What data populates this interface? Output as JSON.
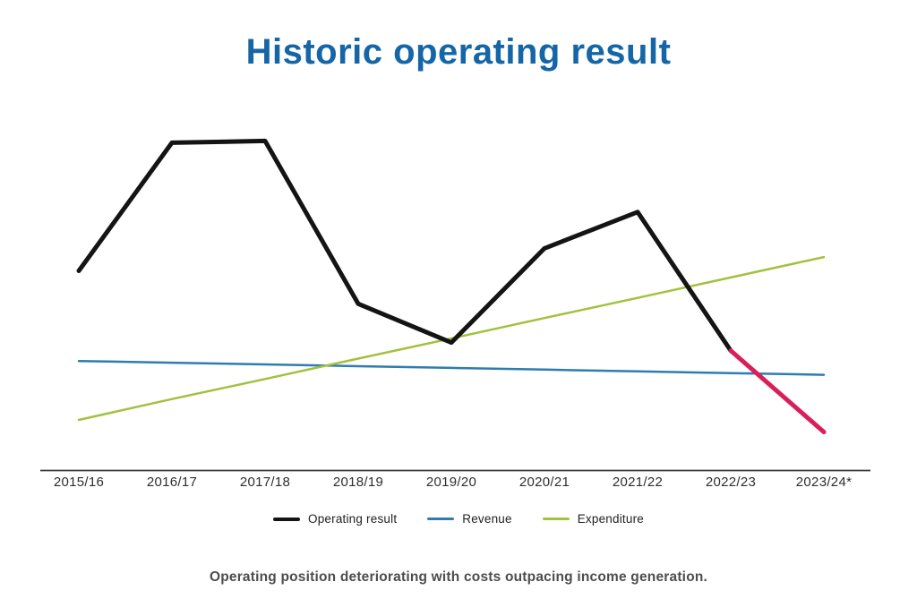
{
  "page": {
    "title": "Historic operating result",
    "caption": "Operating position deteriorating with costs outpacing income generation."
  },
  "colors": {
    "title": "#1566a7",
    "axis": "#3a3a3a",
    "tick_label": "#2e2e2e",
    "legend_text": "#222222",
    "caption": "#4d4d4d",
    "operating_result": "#141414",
    "operating_result_projected": "#d91e5a",
    "revenue": "#2e7cb0",
    "expenditure": "#a3c13d",
    "background": "#ffffff"
  },
  "chart_data": {
    "type": "line",
    "title": "Historic operating result",
    "xlabel": "",
    "ylabel": "",
    "categories": [
      "2015/16",
      "2016/17",
      "2017/18",
      "2018/19",
      "2019/20",
      "2020/21",
      "2021/22",
      "2022/23",
      "2023/24*"
    ],
    "series": [
      {
        "name": "Operating result",
        "color": "#141414",
        "stroke_width": 5,
        "values": [
          58,
          95,
          95.5,
          48.5,
          37.3,
          64.5,
          75,
          35,
          11.5
        ],
        "projected_from_index": 7,
        "projected_color": "#d91e5a"
      },
      {
        "name": "Revenue",
        "color": "#2e7cb0",
        "stroke_width": 2.5,
        "values": [
          32,
          31.5,
          31,
          30.5,
          30,
          29.5,
          29,
          28.5,
          28
        ]
      },
      {
        "name": "Expenditure",
        "color": "#a3c13d",
        "stroke_width": 2.5,
        "values": [
          15,
          21,
          26.8,
          32.7,
          38.5,
          44.4,
          50.2,
          56.1,
          62
        ]
      }
    ],
    "ylim": [
      0,
      110
    ],
    "grid": false,
    "y_axis_shown": false,
    "legend_position": "bottom",
    "note": "No y-axis or value labels are shown in the image; series values are relative estimates on a 0-100 scale of the plot height. The final Operating result segment (2022/23 to 2023/24*) is drawn in pink as a forecast, and 2023/24 is starred."
  }
}
